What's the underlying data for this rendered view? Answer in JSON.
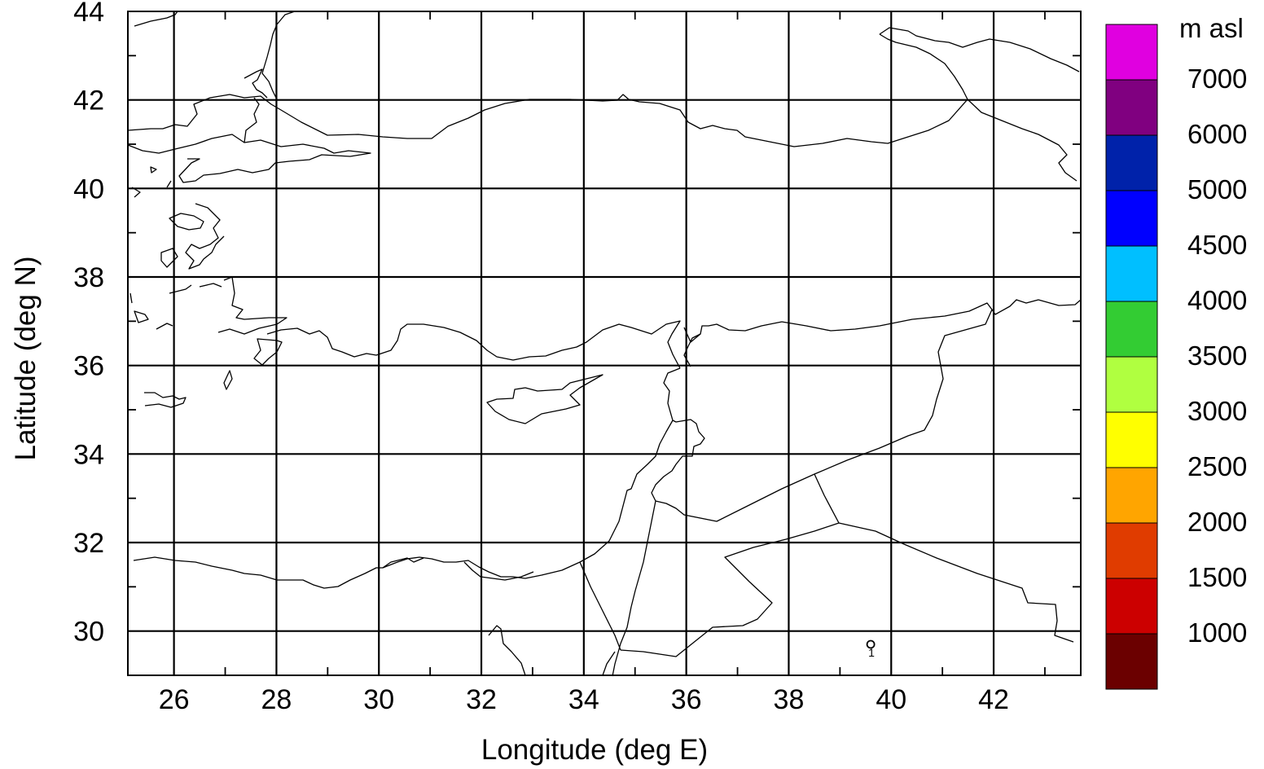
{
  "map": {
    "xlabel": "Longitude (deg E)",
    "ylabel": "Latitude (deg N)",
    "xlim": [
      25.1,
      43.7
    ],
    "ylim": [
      29.0,
      44.0
    ],
    "x_ticks": [
      26,
      28,
      30,
      32,
      34,
      36,
      38,
      40,
      42
    ],
    "y_ticks": [
      30,
      32,
      34,
      36,
      38,
      40,
      42,
      44
    ],
    "x_tick_labels": [
      "26",
      "28",
      "30",
      "32",
      "34",
      "36",
      "38",
      "40",
      "42"
    ],
    "y_tick_labels": [
      "30",
      "32",
      "34",
      "36",
      "38",
      "40",
      "42",
      "44"
    ],
    "grid": true,
    "marker": {
      "lon": 39.6,
      "lat": 29.7,
      "label": "1"
    }
  },
  "colorbar": {
    "unit": "m asl",
    "colors": [
      "#6b0000",
      "#cc0000",
      "#e03c00",
      "#ffa500",
      "#ffff00",
      "#b0ff40",
      "#33cc33",
      "#00bfff",
      "#0000ff",
      "#0022aa",
      "#800080",
      "#e000e0"
    ],
    "labels": [
      "1000",
      "1500",
      "2000",
      "2500",
      "3000",
      "3500",
      "4000",
      "4500",
      "5000",
      "6000",
      "7000"
    ]
  }
}
